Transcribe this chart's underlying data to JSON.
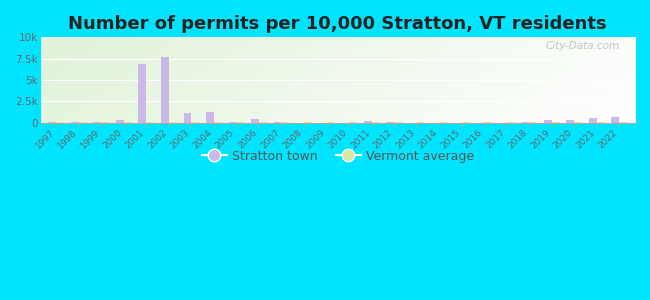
{
  "title": "Number of permits per 10,000 Stratton, VT residents",
  "years": [
    1997,
    1998,
    1999,
    2000,
    2001,
    2002,
    2003,
    2004,
    2005,
    2006,
    2007,
    2008,
    2009,
    2010,
    2011,
    2012,
    2013,
    2014,
    2015,
    2016,
    2017,
    2018,
    2019,
    2020,
    2021,
    2022
  ],
  "stratton_values": [
    130,
    130,
    130,
    300,
    6900,
    7700,
    1100,
    1300,
    30,
    380,
    30,
    15,
    15,
    15,
    220,
    100,
    15,
    15,
    15,
    15,
    15,
    130,
    260,
    260,
    500,
    700
  ],
  "vermont_values": [
    50,
    50,
    50,
    50,
    50,
    50,
    50,
    50,
    50,
    50,
    50,
    50,
    50,
    50,
    50,
    50,
    50,
    50,
    50,
    50,
    50,
    50,
    50,
    50,
    50,
    50
  ],
  "bar_color_stratton": "#c9b8e8",
  "bar_color_vermont": "#d4e8a0",
  "outer_bg": "#00e5ff",
  "ylim": [
    0,
    10000
  ],
  "yticks": [
    0,
    2500,
    5000,
    7500,
    10000
  ],
  "ytick_labels": [
    "0",
    "2.5k",
    "5k",
    "7.5k",
    "10k"
  ],
  "legend_stratton": "Stratton town",
  "legend_vermont": "Vermont average",
  "title_fontsize": 13,
  "bar_width": 0.35
}
